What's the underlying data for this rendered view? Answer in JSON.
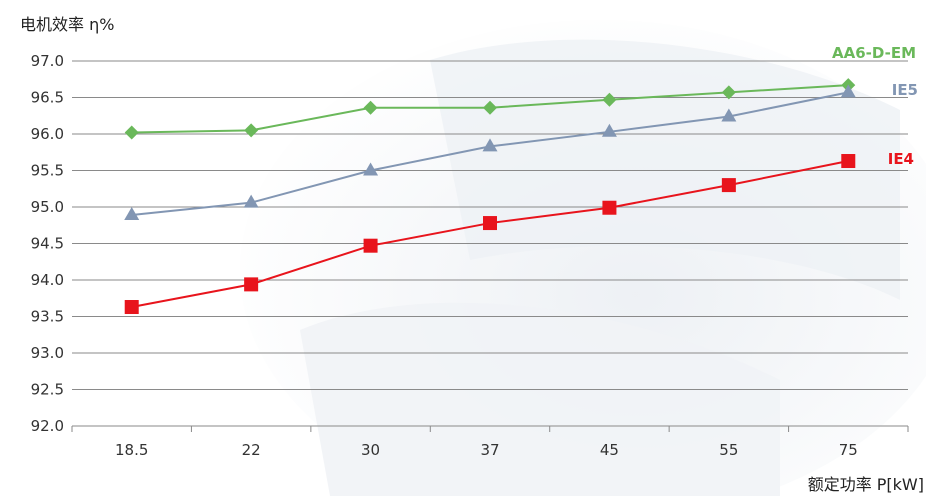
{
  "chart_data": {
    "type": "line",
    "ylabel": "电机效率 η%",
    "xlabel": "额定功率 P[kW]",
    "categories": [
      "18.5",
      "22",
      "30",
      "37",
      "45",
      "55",
      "75"
    ],
    "ylim": [
      92.0,
      97.0
    ],
    "yticks": [
      "92.0",
      "92.5",
      "93.0",
      "93.5",
      "94.0",
      "94.5",
      "95.0",
      "95.5",
      "96.0",
      "96.5",
      "97.0"
    ],
    "grid": "horizontal",
    "series": [
      {
        "name": "AA6-D-EM",
        "values": [
          96.02,
          96.05,
          96.36,
          96.36,
          96.47,
          96.57,
          96.67
        ],
        "color": "#6ab85a",
        "marker": "diamond"
      },
      {
        "name": "IE5",
        "values": [
          94.89,
          95.06,
          95.5,
          95.83,
          96.03,
          96.24,
          96.57
        ],
        "color": "#8296b3",
        "marker": "triangle"
      },
      {
        "name": "IE4",
        "values": [
          93.63,
          93.94,
          94.47,
          94.78,
          94.99,
          95.3,
          95.63
        ],
        "color": "#e8141c",
        "marker": "square"
      }
    ]
  }
}
